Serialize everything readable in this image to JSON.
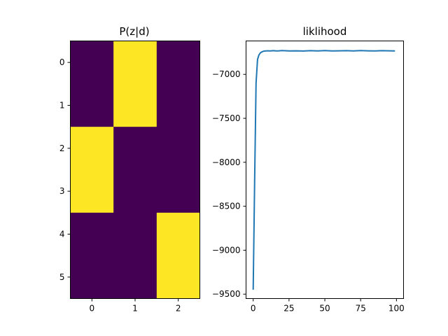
{
  "chart_data": [
    {
      "type": "heatmap",
      "title": "P(z|d)",
      "xlabel": "",
      "ylabel": "",
      "x_ticks": [
        "0",
        "1",
        "2"
      ],
      "y_ticks": [
        "0",
        "1",
        "2",
        "3",
        "4",
        "5"
      ],
      "matrix": [
        [
          0,
          1,
          0
        ],
        [
          0,
          1,
          0
        ],
        [
          1,
          0,
          0
        ],
        [
          1,
          0,
          0
        ],
        [
          0,
          0,
          1
        ],
        [
          0,
          0,
          1
        ]
      ],
      "colormap": {
        "low": "#440154",
        "high": "#fde725"
      }
    },
    {
      "type": "line",
      "title": "liklihood",
      "xlabel": "",
      "ylabel": "",
      "xlim": [
        -5,
        104.95
      ],
      "ylim": [
        -9550,
        -6620
      ],
      "x_ticks": [
        0,
        25,
        50,
        75,
        100
      ],
      "y_ticks": [
        -9500,
        -9000,
        -8500,
        -8000,
        -7500,
        -7000
      ],
      "x": [
        0,
        1,
        2,
        3,
        4,
        5,
        6,
        7,
        8,
        9,
        10,
        12,
        14,
        16,
        18,
        20,
        25,
        30,
        35,
        40,
        45,
        50,
        55,
        60,
        65,
        70,
        75,
        80,
        85,
        90,
        95,
        99
      ],
      "values": [
        -9450,
        -8200,
        -7100,
        -6830,
        -6780,
        -6755,
        -6745,
        -6738,
        -6735,
        -6733,
        -6732,
        -6733,
        -6731,
        -6734,
        -6732,
        -6730,
        -6733,
        -6732,
        -6735,
        -6731,
        -6733,
        -6730,
        -6734,
        -6732,
        -6731,
        -6733,
        -6730,
        -6732,
        -6734,
        -6731,
        -6732,
        -6733
      ],
      "line_color": "#1f77b4",
      "grid": false
    }
  ]
}
